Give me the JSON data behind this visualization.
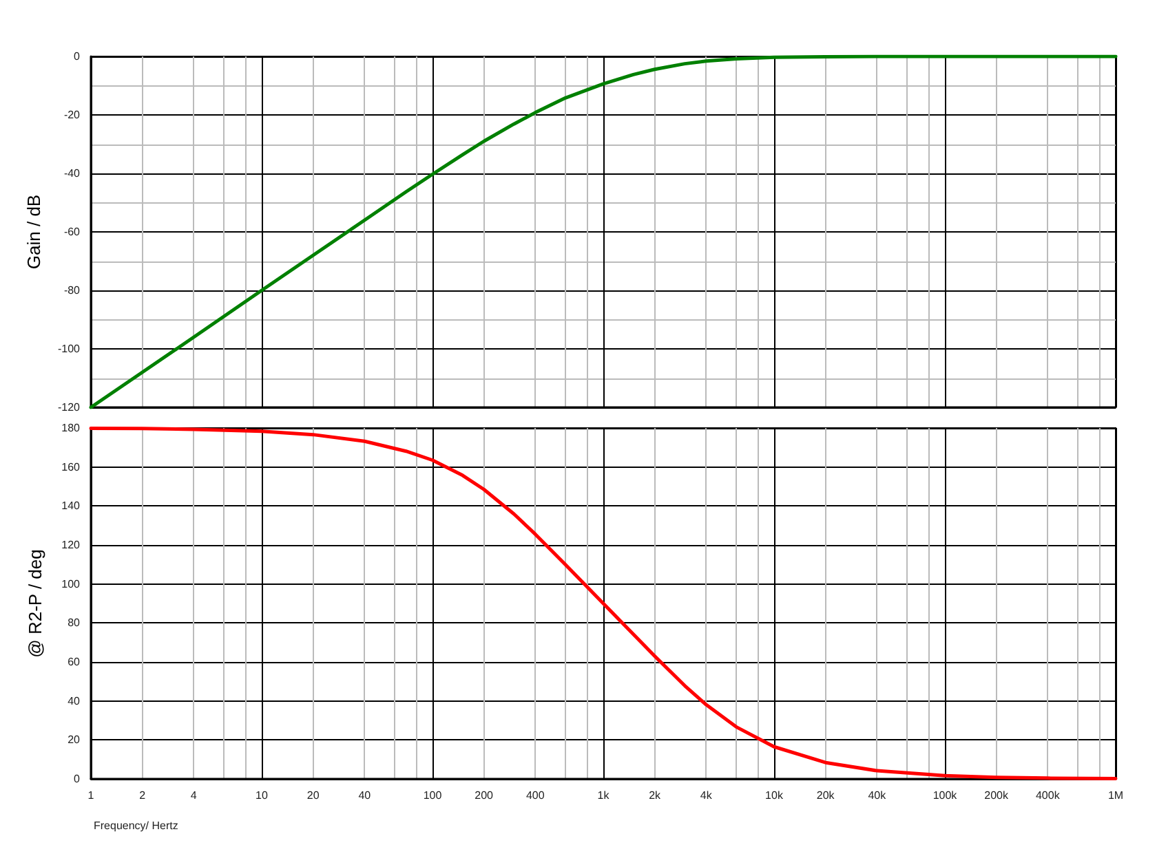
{
  "chart_data": [
    {
      "type": "line",
      "ylabel": "Gain / dB",
      "x": [
        1,
        2,
        4,
        10,
        20,
        40,
        70,
        100,
        150,
        200,
        300,
        400,
        600,
        1000,
        1500,
        2000,
        3000,
        4000,
        6000,
        10000,
        20000,
        40000,
        100000,
        1000000
      ],
      "series": [
        {
          "color": "#008000",
          "values": [
            -120,
            -108,
            -96,
            -80,
            -68,
            -56,
            -46.3,
            -40.3,
            -33.6,
            -29,
            -23.1,
            -19.2,
            -14.2,
            -9.4,
            -6.2,
            -4.4,
            -2.5,
            -1.6,
            -0.8,
            -0.3,
            -0.1,
            0,
            0,
            0
          ]
        }
      ],
      "log": "x",
      "xlim": [
        1,
        1000000
      ],
      "xticks": [
        1,
        2,
        4,
        6,
        8,
        10,
        20,
        40,
        60,
        80,
        100,
        200,
        400,
        600,
        800,
        1000,
        2000,
        4000,
        6000,
        8000,
        10000,
        20000,
        40000,
        60000,
        80000,
        100000,
        200000,
        400000,
        600000,
        800000,
        1000000
      ],
      "ylim": [
        -120,
        0
      ],
      "yticks": [
        -120,
        {
          "value": -110,
          "label": null
        },
        -100,
        {
          "value": -90,
          "label": null
        },
        -80,
        {
          "value": -70,
          "label": null
        },
        -60,
        {
          "value": -50,
          "label": null
        },
        -40,
        {
          "value": -30,
          "label": null
        },
        -20,
        {
          "value": -10,
          "label": null
        },
        0
      ],
      "tick_labels": "y",
      "grid": true,
      "marker": "none",
      "line_style": "solid"
    },
    {
      "type": "line",
      "xlabel": "Frequency/ Hertz",
      "ylabel": "@ R2-P / deg",
      "x": [
        1,
        2,
        4,
        10,
        20,
        40,
        70,
        100,
        150,
        200,
        300,
        400,
        600,
        1000,
        1500,
        2000,
        3000,
        4000,
        6000,
        10000,
        20000,
        40000,
        100000,
        200000,
        400000,
        1000000
      ],
      "series": [
        {
          "color": "#ff0000",
          "values": [
            179.8,
            179.7,
            179.3,
            178.3,
            176.6,
            173.2,
            168.1,
            163.5,
            155.7,
            148.5,
            135.9,
            125.5,
            109.9,
            90,
            74.2,
            63,
            47.8,
            38.1,
            26.7,
            16.5,
            8.4,
            4.2,
            1.7,
            0.8,
            0.4,
            0.2
          ]
        }
      ],
      "log": "x",
      "xlim": [
        1,
        1000000
      ],
      "xticks": [
        1,
        2,
        4,
        {
          "value": 6,
          "label": null
        },
        {
          "value": 8,
          "label": null
        },
        10,
        20,
        40,
        {
          "value": 60,
          "label": null
        },
        {
          "value": 80,
          "label": null
        },
        100,
        200,
        400,
        {
          "value": 600,
          "label": null
        },
        {
          "value": 800,
          "label": null
        },
        {
          "value": 1000,
          "label": "1k"
        },
        {
          "value": 2000,
          "label": "2k"
        },
        {
          "value": 4000,
          "label": "4k"
        },
        {
          "value": 6000,
          "label": null
        },
        {
          "value": 8000,
          "label": null
        },
        {
          "value": 10000,
          "label": "10k"
        },
        {
          "value": 20000,
          "label": "20k"
        },
        {
          "value": 40000,
          "label": "40k"
        },
        {
          "value": 60000,
          "label": null
        },
        {
          "value": 80000,
          "label": null
        },
        {
          "value": 100000,
          "label": "100k"
        },
        {
          "value": 200000,
          "label": "200k"
        },
        {
          "value": 400000,
          "label": "400k"
        },
        {
          "value": 600000,
          "label": null
        },
        {
          "value": 800000,
          "label": null
        },
        {
          "value": 1000000,
          "label": "1M"
        }
      ],
      "ylim": [
        0,
        180
      ],
      "yticks": [
        0,
        20,
        40,
        60,
        80,
        100,
        120,
        140,
        160,
        180
      ],
      "grid": true,
      "marker": "none",
      "line_style": "solid"
    }
  ]
}
